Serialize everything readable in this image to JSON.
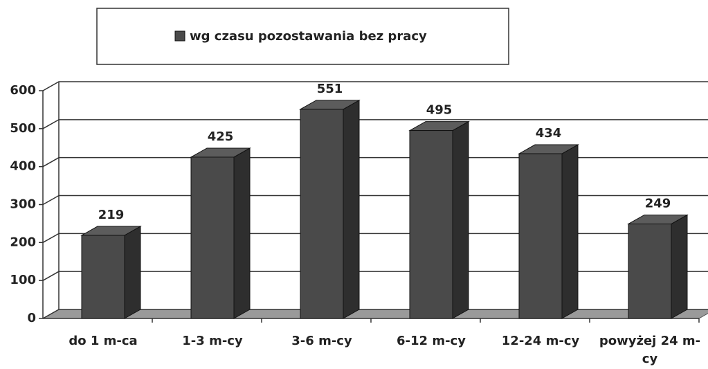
{
  "chart_data": {
    "type": "bar3d",
    "legend": "wg czasu pozostawania bez pracy",
    "categories": [
      "do 1 m-ca",
      "1-3 m-cy",
      "3-6 m-cy",
      "6-12 m-cy",
      "12-24 m-cy",
      "powyżej 24 m-cy"
    ],
    "values": [
      219,
      425,
      551,
      495,
      434,
      249
    ],
    "color": "#4a4a4a",
    "ylim": [
      0,
      600
    ],
    "yticks": [
      0,
      100,
      200,
      300,
      400,
      500,
      600
    ],
    "grid": true
  }
}
